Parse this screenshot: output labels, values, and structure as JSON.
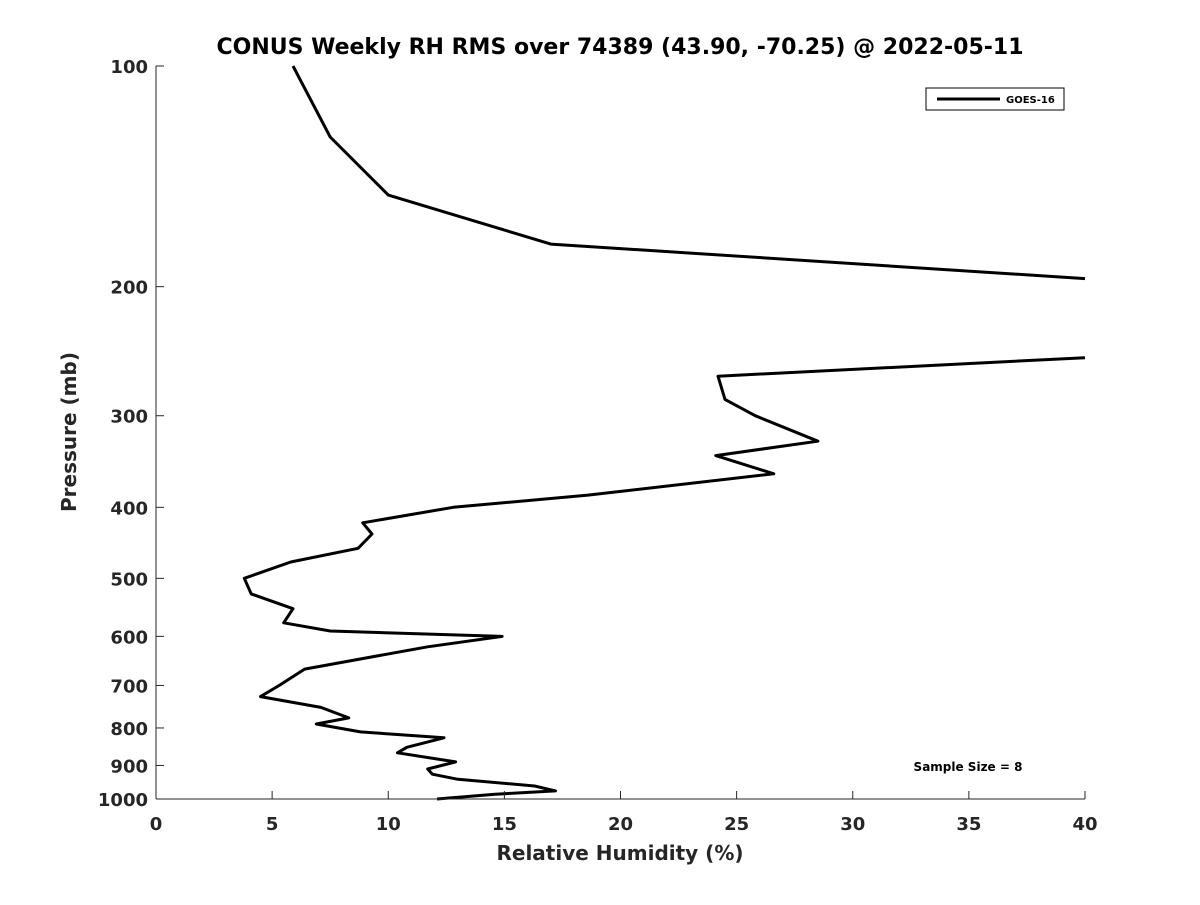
{
  "chart_data": {
    "type": "line",
    "title": "CONUS Weekly RH RMS over 74389 (43.90, -70.25) @ 2022-05-11",
    "xlabel": "Relative Humidity (%)",
    "ylabel": "Pressure (mb)",
    "xlim": [
      0,
      40
    ],
    "ylim": [
      1000,
      100
    ],
    "yscale": "log",
    "y_reversed": true,
    "grid": false,
    "legend_position": "top-right",
    "x_ticks": [
      0,
      5,
      10,
      15,
      20,
      25,
      30,
      35,
      40
    ],
    "x_tick_labels": [
      "0",
      "5",
      "10",
      "15",
      "20",
      "25",
      "30",
      "35",
      "40"
    ],
    "y_ticks": [
      100,
      200,
      300,
      400,
      500,
      600,
      700,
      800,
      900,
      1000
    ],
    "y_tick_labels": [
      "100",
      "200",
      "300",
      "400",
      "500",
      "600",
      "700",
      "800",
      "900",
      "1000"
    ],
    "series": [
      {
        "name": "GOES-16",
        "color": "#000000",
        "segments": [
          [
            {
              "x": 5.9,
              "y": 100
            },
            {
              "x": 7.5,
              "y": 125
            },
            {
              "x": 10.0,
              "y": 150
            },
            {
              "x": 17.0,
              "y": 175
            },
            {
              "x": 40.0,
              "y": 195
            }
          ],
          [
            {
              "x": 40.0,
              "y": 250
            },
            {
              "x": 24.2,
              "y": 265
            },
            {
              "x": 24.5,
              "y": 285
            },
            {
              "x": 25.8,
              "y": 300
            },
            {
              "x": 28.5,
              "y": 325
            },
            {
              "x": 24.1,
              "y": 340
            },
            {
              "x": 26.6,
              "y": 360
            },
            {
              "x": 18.6,
              "y": 385
            },
            {
              "x": 12.8,
              "y": 400
            },
            {
              "x": 8.9,
              "y": 420
            },
            {
              "x": 9.3,
              "y": 435
            },
            {
              "x": 8.7,
              "y": 455
            },
            {
              "x": 5.8,
              "y": 475
            },
            {
              "x": 3.8,
              "y": 500
            },
            {
              "x": 4.1,
              "y": 525
            },
            {
              "x": 5.9,
              "y": 550
            },
            {
              "x": 5.5,
              "y": 575
            },
            {
              "x": 7.5,
              "y": 590
            },
            {
              "x": 14.9,
              "y": 600
            },
            {
              "x": 11.7,
              "y": 620
            },
            {
              "x": 6.4,
              "y": 665
            },
            {
              "x": 5.3,
              "y": 700
            },
            {
              "x": 4.5,
              "y": 725
            },
            {
              "x": 7.1,
              "y": 750
            },
            {
              "x": 8.3,
              "y": 775
            },
            {
              "x": 6.9,
              "y": 790
            },
            {
              "x": 8.8,
              "y": 810
            },
            {
              "x": 12.4,
              "y": 825
            },
            {
              "x": 10.8,
              "y": 850
            },
            {
              "x": 10.4,
              "y": 865
            },
            {
              "x": 12.9,
              "y": 890
            },
            {
              "x": 11.7,
              "y": 910
            },
            {
              "x": 11.9,
              "y": 925
            },
            {
              "x": 13.0,
              "y": 940
            },
            {
              "x": 16.3,
              "y": 960
            },
            {
              "x": 17.2,
              "y": 975
            },
            {
              "x": 14.6,
              "y": 985
            },
            {
              "x": 12.1,
              "y": 1000
            }
          ]
        ]
      }
    ],
    "legend": [
      {
        "label": "GOES-16"
      }
    ],
    "annotations": [
      {
        "text": "Sample Size = 8"
      }
    ]
  }
}
